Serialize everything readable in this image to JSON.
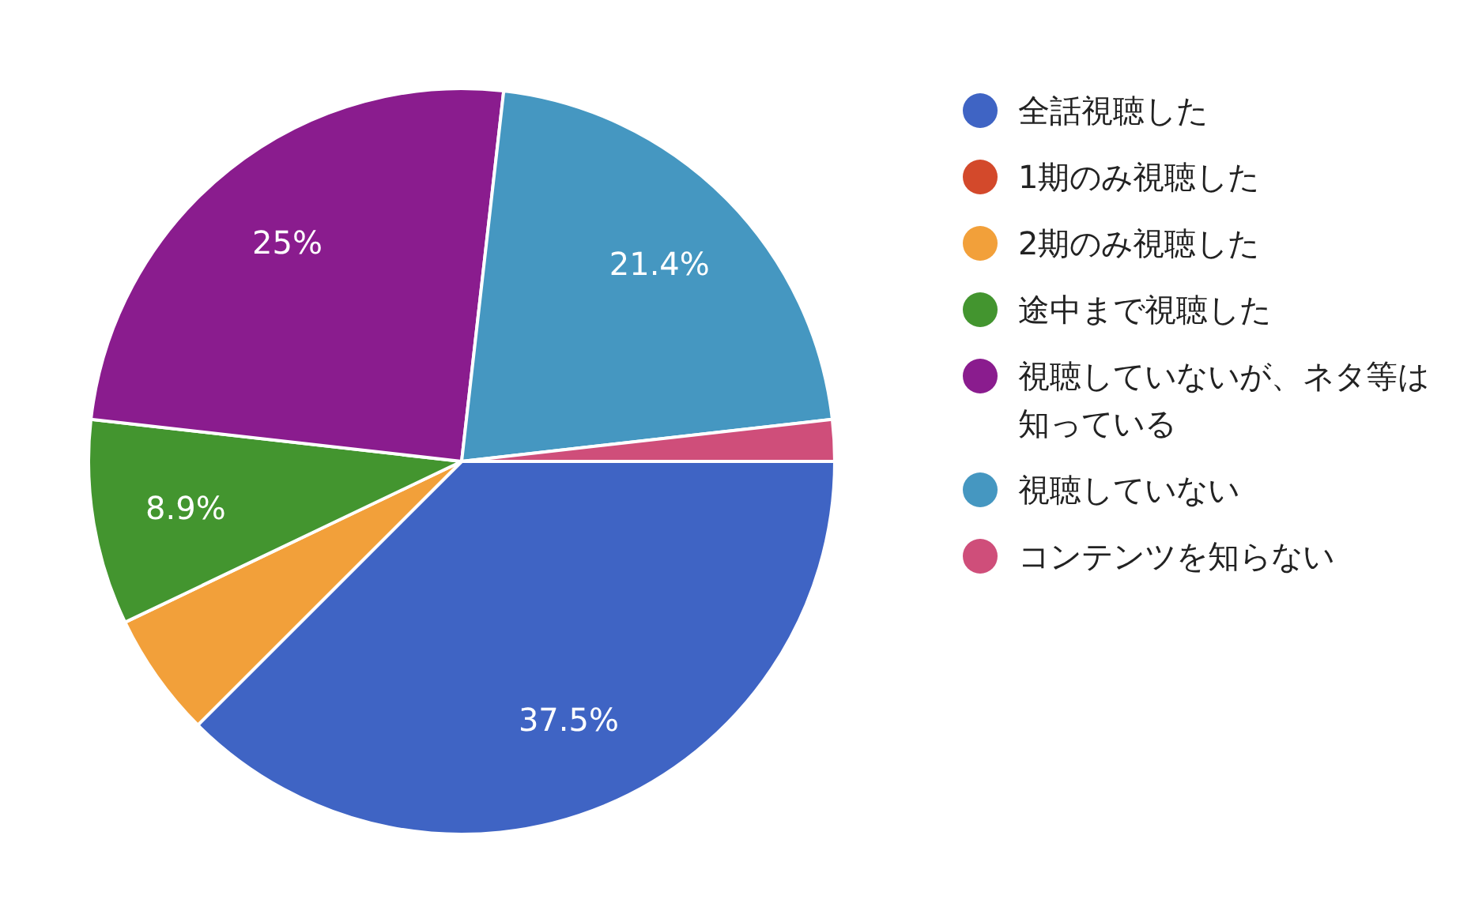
{
  "chart_data": {
    "type": "pie",
    "categories": [
      "全話視聴した",
      "1期のみ視聴した",
      "2期のみ視聴した",
      "途中まで視聴した",
      "視聴していないが、ネタ等は知っている",
      "視聴していない",
      "コンテンツを知らない"
    ],
    "values": [
      37.5,
      0,
      5.4,
      8.9,
      25,
      21.4,
      1.8
    ],
    "value_labels": [
      "37.5%",
      null,
      null,
      "8.9%",
      "25%",
      "21.4%",
      null
    ],
    "colors": [
      "#3f64c4",
      "#d3492b",
      "#f2a03a",
      "#43952f",
      "#8a1c8e",
      "#4597c1",
      "#cf4e7a"
    ],
    "legend": "right"
  }
}
